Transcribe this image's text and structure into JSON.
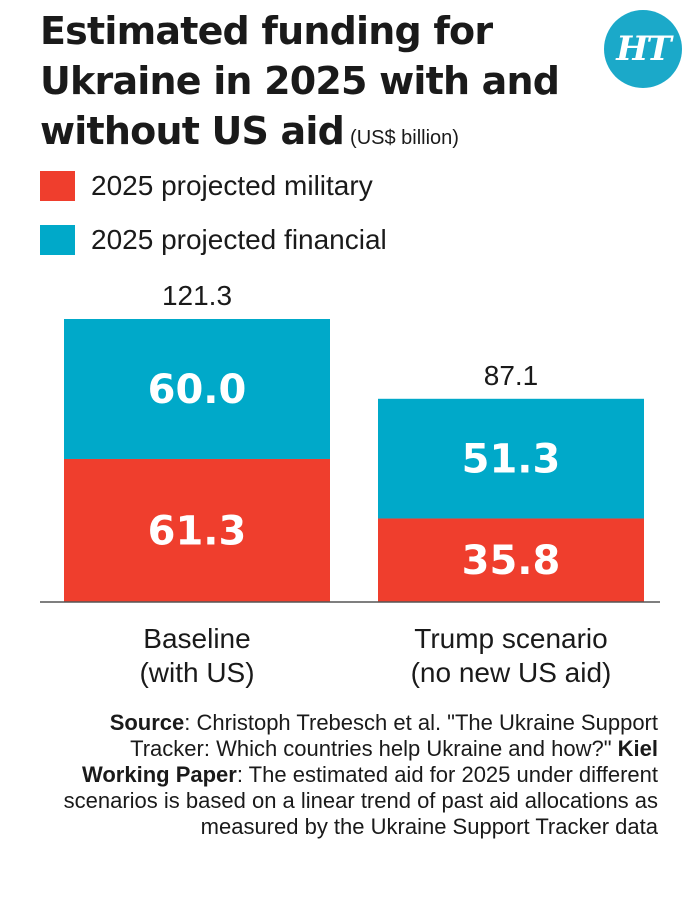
{
  "title": "Estimated funding for Ukraine in 2025 with and without US aid",
  "unit": "(US$ billion)",
  "logo_text": "HT",
  "colors": {
    "military": "#ef3e2d",
    "financial": "#00a9c9",
    "logo": "#1ba9c9"
  },
  "legend": [
    {
      "label": "2025 projected military",
      "color": "#ef3e2d"
    },
    {
      "label": "2025 projected financial",
      "color": "#00a9c9"
    }
  ],
  "source": {
    "label": "Source",
    "text1": ": Christoph Trebesch et al. \"The Ukraine Support Tracker: Which countries help Ukraine and how?\" ",
    "paper": "Kiel Working Paper",
    "text2": ": The estimated aid for 2025 under different scenarios is based on a linear trend of past aid allocations as measured by the Ukraine Support Tracker data"
  },
  "chart_data": {
    "type": "bar",
    "stacked": true,
    "categories": [
      [
        "Baseline",
        "(with US)"
      ],
      [
        "Trump scenario",
        "(no new US aid)"
      ]
    ],
    "series": [
      {
        "name": "2025 projected military",
        "values": [
          61.3,
          35.8
        ],
        "labels": [
          "61.3",
          "35.8"
        ]
      },
      {
        "name": "2025 projected financial",
        "values": [
          60.0,
          51.3
        ],
        "labels": [
          "60.0",
          "51.3"
        ]
      }
    ],
    "totals": [
      121.3,
      87.1
    ],
    "total_labels": [
      "121.3",
      "87.1"
    ],
    "ylim": [
      0,
      121.3
    ],
    "grid": false
  }
}
